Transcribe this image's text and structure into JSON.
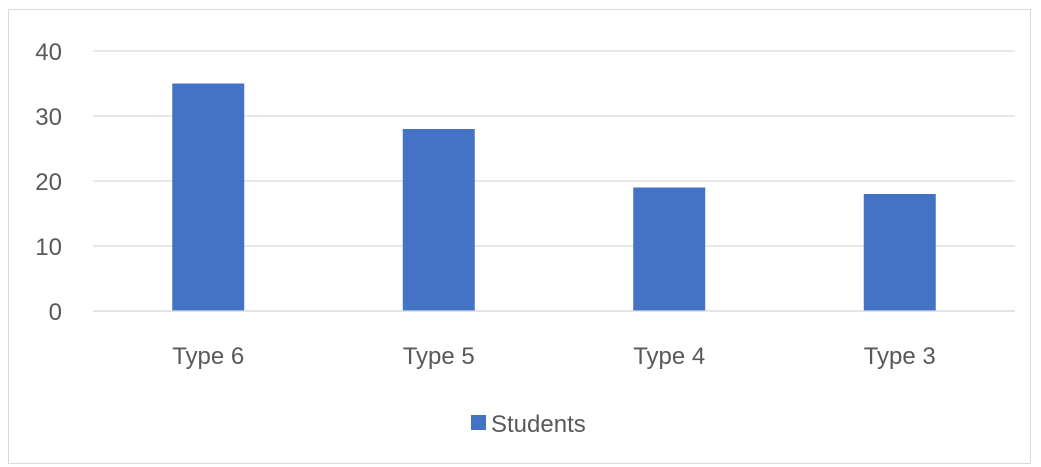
{
  "chart_data": {
    "type": "bar",
    "categories": [
      "Type 6",
      "Type 5",
      "Type 4",
      "Type 3"
    ],
    "series": [
      {
        "name": "Students",
        "values": [
          35,
          28,
          19,
          18
        ],
        "color": "#4472c4"
      }
    ],
    "title": "",
    "xlabel": "",
    "ylabel": "",
    "ylim": [
      0,
      40
    ],
    "yticks": [
      0,
      10,
      20,
      30,
      40
    ],
    "grid": true,
    "gridline_color": "#d9d9d9",
    "legend_position": "bottom"
  }
}
